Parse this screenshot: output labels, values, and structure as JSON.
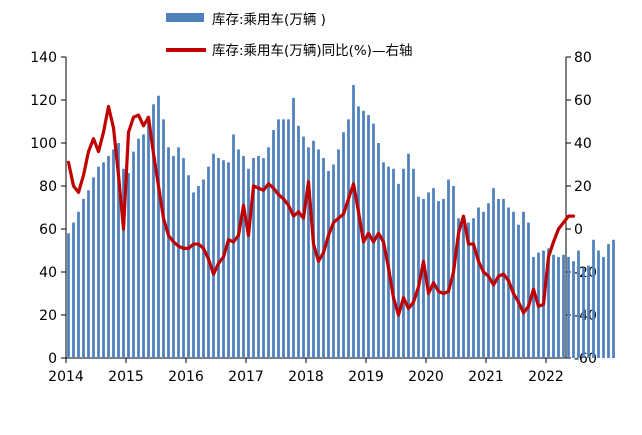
{
  "chart_data": {
    "type": "bar+line",
    "legend": [
      {
        "label": "库存:乘用车(万辆 )",
        "kind": "bar",
        "color": "#4f81bd"
      },
      {
        "label": "库存:乘用车(万辆)同比(%)—右轴",
        "kind": "line",
        "color": "#c00000"
      }
    ],
    "left_axis": {
      "min": 0,
      "max": 140,
      "ticks": [
        "0",
        "20",
        "40",
        "60",
        "80",
        "100",
        "120",
        "140"
      ]
    },
    "right_axis": {
      "min": -60,
      "max": 80,
      "ticks": [
        "-60",
        "-40",
        "-20",
        "0",
        "20",
        "40",
        "60",
        "80"
      ]
    },
    "x_axis": {
      "start_year": 2014,
      "end_year": 2022,
      "ticks": [
        "2014",
        "2015",
        "2016",
        "2017",
        "2018",
        "2019",
        "2020",
        "2021",
        "2022"
      ]
    },
    "series": [
      {
        "name": "库存:乘用车(万辆 )",
        "axis": "left",
        "start": "2014-01",
        "values": [
          58,
          63,
          68,
          74,
          78,
          84,
          89,
          91,
          94,
          97,
          100,
          88,
          86,
          96,
          102,
          104,
          112,
          118,
          122,
          111,
          98,
          94,
          98,
          93,
          85,
          77,
          80,
          83,
          89,
          95,
          93,
          92,
          91,
          104,
          97,
          94,
          88,
          93,
          94,
          93,
          98,
          106,
          111,
          111,
          111,
          121,
          108,
          103,
          98,
          101,
          97,
          93,
          87,
          90,
          97,
          105,
          111,
          127,
          117,
          115,
          113,
          109,
          100,
          91,
          89,
          88,
          81,
          88,
          95,
          88,
          75,
          74,
          77,
          79,
          73,
          74,
          83,
          80,
          65,
          62,
          63,
          65,
          70,
          68,
          72,
          79,
          74,
          74,
          70,
          68,
          62,
          68,
          63,
          47,
          49,
          50,
          51,
          48,
          47,
          48,
          47,
          45,
          50,
          42,
          43,
          55,
          50,
          47,
          53,
          55
        ]
      },
      {
        "name": "库存:乘用车(万辆)同比(%)—右轴",
        "axis": "right",
        "start": "2014-01",
        "values": [
          31,
          20,
          17,
          25,
          36,
          42,
          36,
          45,
          57,
          47,
          25,
          0,
          45,
          52,
          53,
          48,
          52,
          35,
          20,
          5,
          -3,
          -6,
          -8,
          -9,
          -9,
          -7,
          -7,
          -9,
          -14,
          -21,
          -16,
          -13,
          -5,
          -6,
          -3,
          11,
          -3,
          20,
          19,
          18,
          21,
          19,
          16,
          14,
          11,
          6,
          8,
          5,
          22,
          -7,
          -15,
          -11,
          -3,
          3,
          5,
          7,
          14,
          21,
          8,
          -6,
          -2,
          -6,
          -2,
          -6,
          -18,
          -32,
          -40,
          -32,
          -37,
          -34,
          -27,
          -15,
          -30,
          -25,
          -29,
          -30,
          -29,
          -20,
          -2,
          6,
          -7,
          -7,
          -15,
          -20,
          -22,
          -26,
          -22,
          -21,
          -24,
          -30,
          -34,
          -39,
          -36,
          -28,
          -36,
          -35,
          -13,
          -6,
          0,
          3,
          6,
          6
        ]
      }
    ]
  }
}
